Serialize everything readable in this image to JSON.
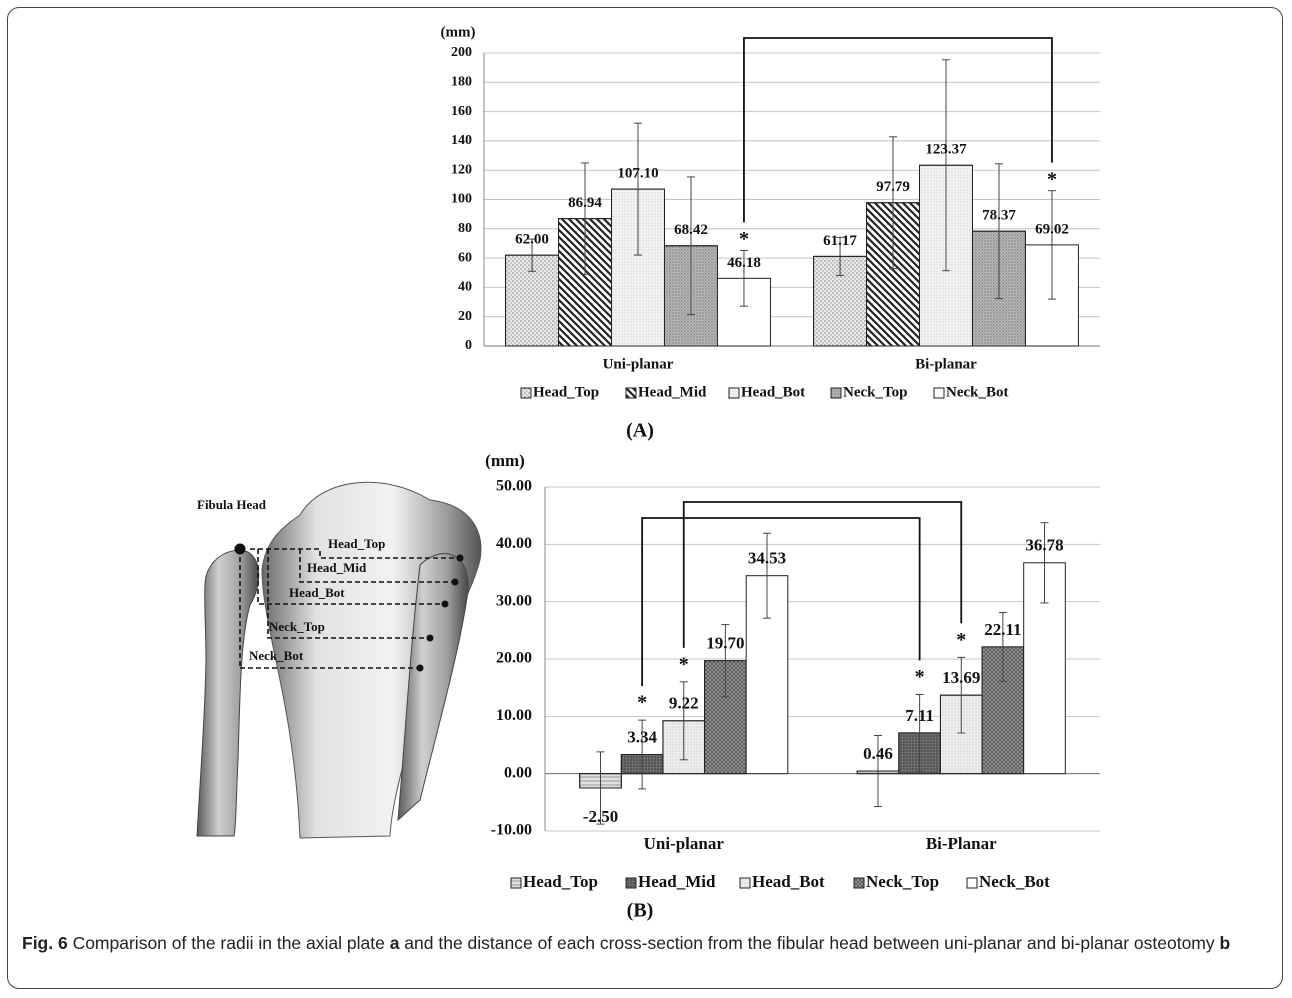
{
  "chart_data": [
    {
      "type": "bar",
      "ylabel": "(mm)",
      "panel_label": "(A)",
      "categories": [
        "Uni-planar",
        "Bi-planar"
      ],
      "ylim": [
        0,
        200
      ],
      "yticks": [
        0,
        20,
        40,
        60,
        80,
        100,
        120,
        140,
        160,
        180,
        200
      ],
      "grid": true,
      "series": [
        {
          "name": "Head_Top",
          "color": "#e8e8e8",
          "values": [
            62.0,
            61.17
          ],
          "value_labels": [
            "62.00",
            "61.17"
          ],
          "errors": [
            11,
            13
          ]
        },
        {
          "name": "Head_Mid",
          "color": "#ffffff",
          "values": [
            86.94,
            97.79
          ],
          "value_labels": [
            "86.94",
            "97.79"
          ],
          "errors": [
            38,
            45
          ]
        },
        {
          "name": "Head_Bot",
          "color": "#f4f4f4",
          "values": [
            107.1,
            123.37
          ],
          "value_labels": [
            "107.10",
            "123.37"
          ],
          "errors": [
            45,
            72
          ]
        },
        {
          "name": "Neck_Top",
          "color": "#b8b8b8",
          "values": [
            68.42,
            78.37
          ],
          "value_labels": [
            "68.42",
            "78.37"
          ],
          "errors": [
            47,
            46
          ]
        },
        {
          "name": "Neck_Bot",
          "color": "#ffffff",
          "values": [
            46.18,
            69.02
          ],
          "value_labels": [
            "46.18",
            "69.02"
          ],
          "errors": [
            19,
            37
          ]
        }
      ],
      "annotations": [
        "*",
        "*"
      ]
    },
    {
      "type": "bar",
      "ylabel": "(mm)",
      "panel_label": "(B)",
      "categories": [
        "Uni-planar",
        "Bi-Planar"
      ],
      "ylim": [
        -10,
        50
      ],
      "yticks": [
        {
          "value": -10,
          "label": "-10.00"
        },
        {
          "value": 0,
          "label": "0.00"
        },
        {
          "value": 10,
          "label": "10.00"
        },
        {
          "value": 20,
          "label": "20.00"
        },
        {
          "value": 30,
          "label": "30.00"
        },
        {
          "value": 40,
          "label": "40.00"
        },
        {
          "value": 50,
          "label": "50.00"
        }
      ],
      "grid": true,
      "series": [
        {
          "name": "Head_Top",
          "color": "#e0e0e0",
          "values": [
            -2.5,
            0.46
          ],
          "value_labels": [
            "-2.50",
            "0.46"
          ],
          "errors": [
            6.3,
            6.2
          ]
        },
        {
          "name": "Head_Mid",
          "color": "#6e6e6e",
          "values": [
            3.34,
            7.11
          ],
          "value_labels": [
            "3.34",
            "7.11"
          ],
          "errors": [
            6,
            6.7
          ]
        },
        {
          "name": "Head_Bot",
          "color": "#eeeeee",
          "values": [
            9.22,
            13.69
          ],
          "value_labels": [
            "9.22",
            "13.69"
          ],
          "errors": [
            6.8,
            6.6
          ]
        },
        {
          "name": "Neck_Top",
          "color": "#9a9a9a",
          "values": [
            19.7,
            22.11
          ],
          "value_labels": [
            "19.70",
            "22.11"
          ],
          "errors": [
            6.3,
            6
          ]
        },
        {
          "name": "Neck_Bot",
          "color": "#ffffff",
          "values": [
            34.53,
            36.78
          ],
          "value_labels": [
            "34.53",
            "36.78"
          ],
          "errors": [
            7.4,
            7
          ]
        }
      ],
      "annotations": [
        "*",
        "*",
        "*",
        "*"
      ]
    }
  ],
  "diagram": {
    "labels": [
      "Fibula Head",
      "Head_Top",
      "Head_Mid",
      "Head_Bot",
      "Neck_Top",
      "Neck_Bot"
    ]
  },
  "caption": [
    {
      "text": "Fig. 6",
      "bold": true
    },
    {
      "text": " Comparison of the radii in the axial plate ",
      "bold": false
    },
    {
      "text": "a",
      "bold": true
    },
    {
      "text": " and the distance of each cross-section from the fibular head between uni-planar and bi-planar osteotomy ",
      "bold": false
    },
    {
      "text": "b",
      "bold": true
    }
  ]
}
